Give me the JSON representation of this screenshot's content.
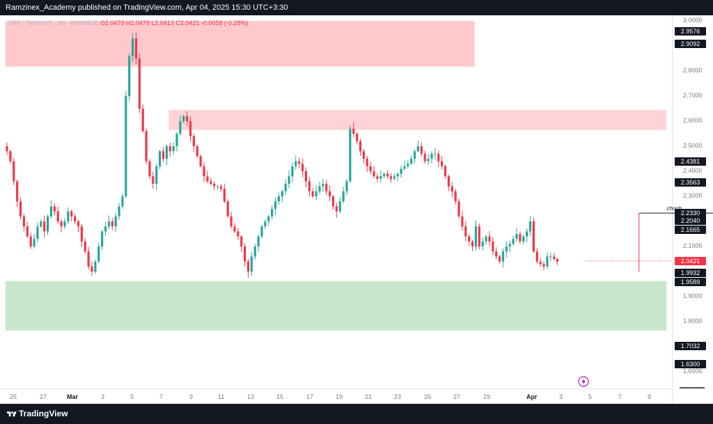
{
  "header": {
    "publish_text": "Ramzinex_Academy published on TradingView.com, Apr 04, 2025 15:30 UTC+3:30"
  },
  "legend": {
    "symbol": "XRP / TetherUS · 4h · BINANCE",
    "ohlc": "O2.0479 H2.0479 L2.0413 C2.0421 -0.0058 (-0.28%)"
  },
  "chart_data": {
    "type": "candlestick",
    "symbol": "XRP / TetherUS",
    "interval": "4h",
    "exchange": "BINANCE",
    "ylim": [
      1.55,
      3.02
    ],
    "price_ticks": [
      "3.0000",
      "2.9000",
      "2.8000",
      "2.7000",
      "2.6000",
      "2.5000",
      "2.4000",
      "2.3000",
      "2.2000",
      "2.1000",
      "2.0000",
      "1.9000",
      "1.8000",
      "1.7000",
      "1.6000"
    ],
    "time_ticks": [
      "25",
      "27",
      "Mar",
      "3",
      "5",
      "7",
      "9",
      "11",
      "13",
      "15",
      "17",
      "19",
      "21",
      "23",
      "25",
      "27",
      "29",
      "Apr",
      "3",
      "5",
      "7",
      "9"
    ],
    "price_labels": [
      {
        "value": "2.9576",
        "price": 2.9576,
        "color": "#131722"
      },
      {
        "value": "2.9092",
        "price": 2.9092,
        "color": "#131722"
      },
      {
        "value": "2.4381",
        "price": 2.4381,
        "color": "#131722"
      },
      {
        "value": "2.3563",
        "price": 2.3563,
        "color": "#131722"
      },
      {
        "value": "2.2330",
        "price": 2.233,
        "color": "#131722"
      },
      {
        "value": "2.2040",
        "price": 2.204,
        "color": "#131722"
      },
      {
        "value": "2.1665",
        "price": 2.1665,
        "color": "#131722"
      },
      {
        "value": "2.0421",
        "price": 2.0421,
        "color": "#f23645"
      },
      {
        "value": "1.9932",
        "price": 1.9932,
        "color": "#131722"
      },
      {
        "value": "1.9589",
        "price": 1.9589,
        "color": "#131722"
      },
      {
        "value": "1.7032",
        "price": 1.7032,
        "color": "#131722"
      },
      {
        "value": "1.6300",
        "price": 1.63,
        "color": "#131722"
      }
    ],
    "zones": [
      {
        "name": "supply-zone-top",
        "from_index": 0,
        "to_index": 138,
        "low": 2.818,
        "high": 3.0,
        "color": "#ffc9cc"
      },
      {
        "name": "supply-zone-mid",
        "from_index": 48,
        "to_index": 203,
        "low": 2.565,
        "high": 2.645,
        "color": "#ffd3d6"
      },
      {
        "name": "demand-zone",
        "from_index": 0,
        "to_index": 222,
        "low": 1.765,
        "high": 1.962,
        "color": "#c8e6c9"
      }
    ],
    "choch": {
      "label": "choch",
      "price": 2.233,
      "from_index": 186,
      "to_index": 210
    },
    "candles_close": [
      2.48,
      2.44,
      2.36,
      2.28,
      2.22,
      2.18,
      2.14,
      2.1,
      2.13,
      2.18,
      2.2,
      2.16,
      2.22,
      2.26,
      2.24,
      2.2,
      2.18,
      2.2,
      2.24,
      2.22,
      2.2,
      2.18,
      2.12,
      2.08,
      2.02,
      2.0,
      2.04,
      2.1,
      2.16,
      2.18,
      2.2,
      2.18,
      2.22,
      2.26,
      2.3,
      2.7,
      2.86,
      2.93,
      2.85,
      2.65,
      2.56,
      2.44,
      2.38,
      2.35,
      2.42,
      2.48,
      2.45,
      2.5,
      2.48,
      2.5,
      2.55,
      2.6,
      2.62,
      2.6,
      2.54,
      2.5,
      2.46,
      2.42,
      2.38,
      2.36,
      2.35,
      2.34,
      2.34,
      2.33,
      2.28,
      2.22,
      2.18,
      2.16,
      2.14,
      2.1,
      2.04,
      2.0,
      2.06,
      2.1,
      2.14,
      2.18,
      2.2,
      2.22,
      2.25,
      2.28,
      2.3,
      2.32,
      2.35,
      2.38,
      2.42,
      2.44,
      2.43,
      2.4,
      2.36,
      2.32,
      2.3,
      2.32,
      2.34,
      2.35,
      2.32,
      2.3,
      2.26,
      2.24,
      2.28,
      2.32,
      2.36,
      2.57,
      2.55,
      2.52,
      2.48,
      2.45,
      2.42,
      2.4,
      2.38,
      2.37,
      2.38,
      2.39,
      2.38,
      2.37,
      2.38,
      2.39,
      2.41,
      2.42,
      2.43,
      2.45,
      2.48,
      2.5,
      2.47,
      2.44,
      2.45,
      2.47,
      2.47,
      2.44,
      2.42,
      2.38,
      2.34,
      2.32,
      2.28,
      2.22,
      2.18,
      2.14,
      2.12,
      2.1,
      2.18,
      2.1,
      2.12,
      2.14,
      2.12,
      2.08,
      2.06,
      2.04,
      2.08,
      2.1,
      2.11,
      2.13,
      2.15,
      2.12,
      2.14,
      2.16,
      2.2,
      2.08,
      2.04,
      2.03,
      2.02,
      2.06,
      2.06,
      2.05,
      2.04
    ]
  },
  "annotations": {
    "choch_label": "choch"
  },
  "footer": {
    "brand": "TradingView"
  },
  "icons": {
    "logo": "tradingview-logo-icon",
    "marker": "lightning-icon"
  },
  "colors": {
    "up": "#26a69a",
    "down": "#f23645",
    "bg": "#ffffff",
    "frame": "#131722"
  }
}
